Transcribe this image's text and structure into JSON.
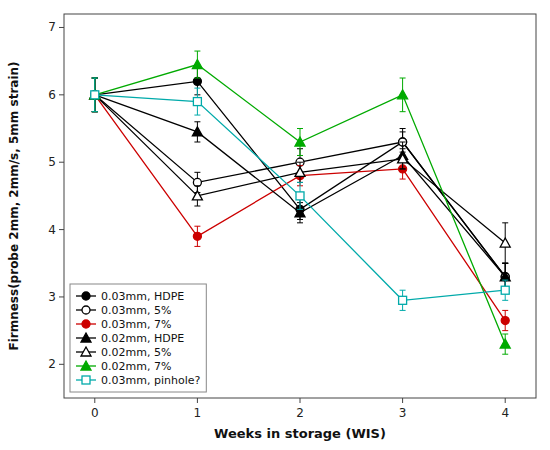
{
  "chart_data": {
    "type": "line",
    "xlabel": "Weeks in storage (WIS)",
    "ylabel": "Firmness(probe 2mm, 2mm/s, 5mm strain)",
    "x": [
      0,
      1,
      2,
      3,
      4
    ],
    "xlim": [
      -0.3,
      4.3
    ],
    "xticks": [
      0,
      1,
      2,
      3,
      4
    ],
    "ylim": [
      1.5,
      7.2
    ],
    "yticks": [
      2,
      3,
      4,
      5,
      6,
      7
    ],
    "grid": false,
    "legend": "lower left",
    "series": [
      {
        "name": "0.03mm, HDPE",
        "color": "#000000",
        "marker": "circle",
        "values": [
          6.0,
          6.2,
          4.3,
          5.3,
          3.3
        ],
        "errors": [
          0.25,
          0.2,
          0.15,
          0.2,
          0.2
        ]
      },
      {
        "name": "0.03mm, 5%",
        "color": "#000000",
        "marker": "circle-open",
        "values": [
          6.0,
          4.7,
          5.0,
          5.3,
          3.3
        ],
        "errors": [
          0.25,
          0.15,
          0.2,
          0.15,
          0.2
        ]
      },
      {
        "name": "0.03mm, 7%",
        "color": "#cc0000",
        "marker": "circle",
        "values": [
          6.0,
          3.9,
          4.8,
          4.9,
          2.65
        ],
        "errors": [
          0.25,
          0.15,
          0.15,
          0.15,
          0.15
        ]
      },
      {
        "name": "0.02mm, HDPE",
        "color": "#000000",
        "marker": "triangle",
        "values": [
          6.0,
          5.45,
          4.25,
          5.1,
          3.3
        ],
        "errors": [
          0.25,
          0.15,
          0.15,
          0.2,
          0.2
        ]
      },
      {
        "name": "0.02mm, 5%",
        "color": "#000000",
        "marker": "triangle-open",
        "values": [
          6.0,
          4.5,
          4.85,
          5.05,
          3.8
        ],
        "errors": [
          0.25,
          0.15,
          0.15,
          0.15,
          0.3
        ]
      },
      {
        "name": "0.02mm, 7%",
        "color": "#00aa00",
        "marker": "triangle",
        "values": [
          6.0,
          6.45,
          5.3,
          6.0,
          2.3
        ],
        "errors": [
          0.25,
          0.2,
          0.2,
          0.25,
          0.15
        ]
      },
      {
        "name": "0.03mm, pinhole?",
        "color": "#00aaaa",
        "marker": "square-open",
        "values": [
          6.0,
          5.9,
          4.5,
          2.95,
          3.1
        ],
        "errors": [
          0.25,
          0.2,
          0.2,
          0.15,
          0.15
        ]
      }
    ]
  }
}
